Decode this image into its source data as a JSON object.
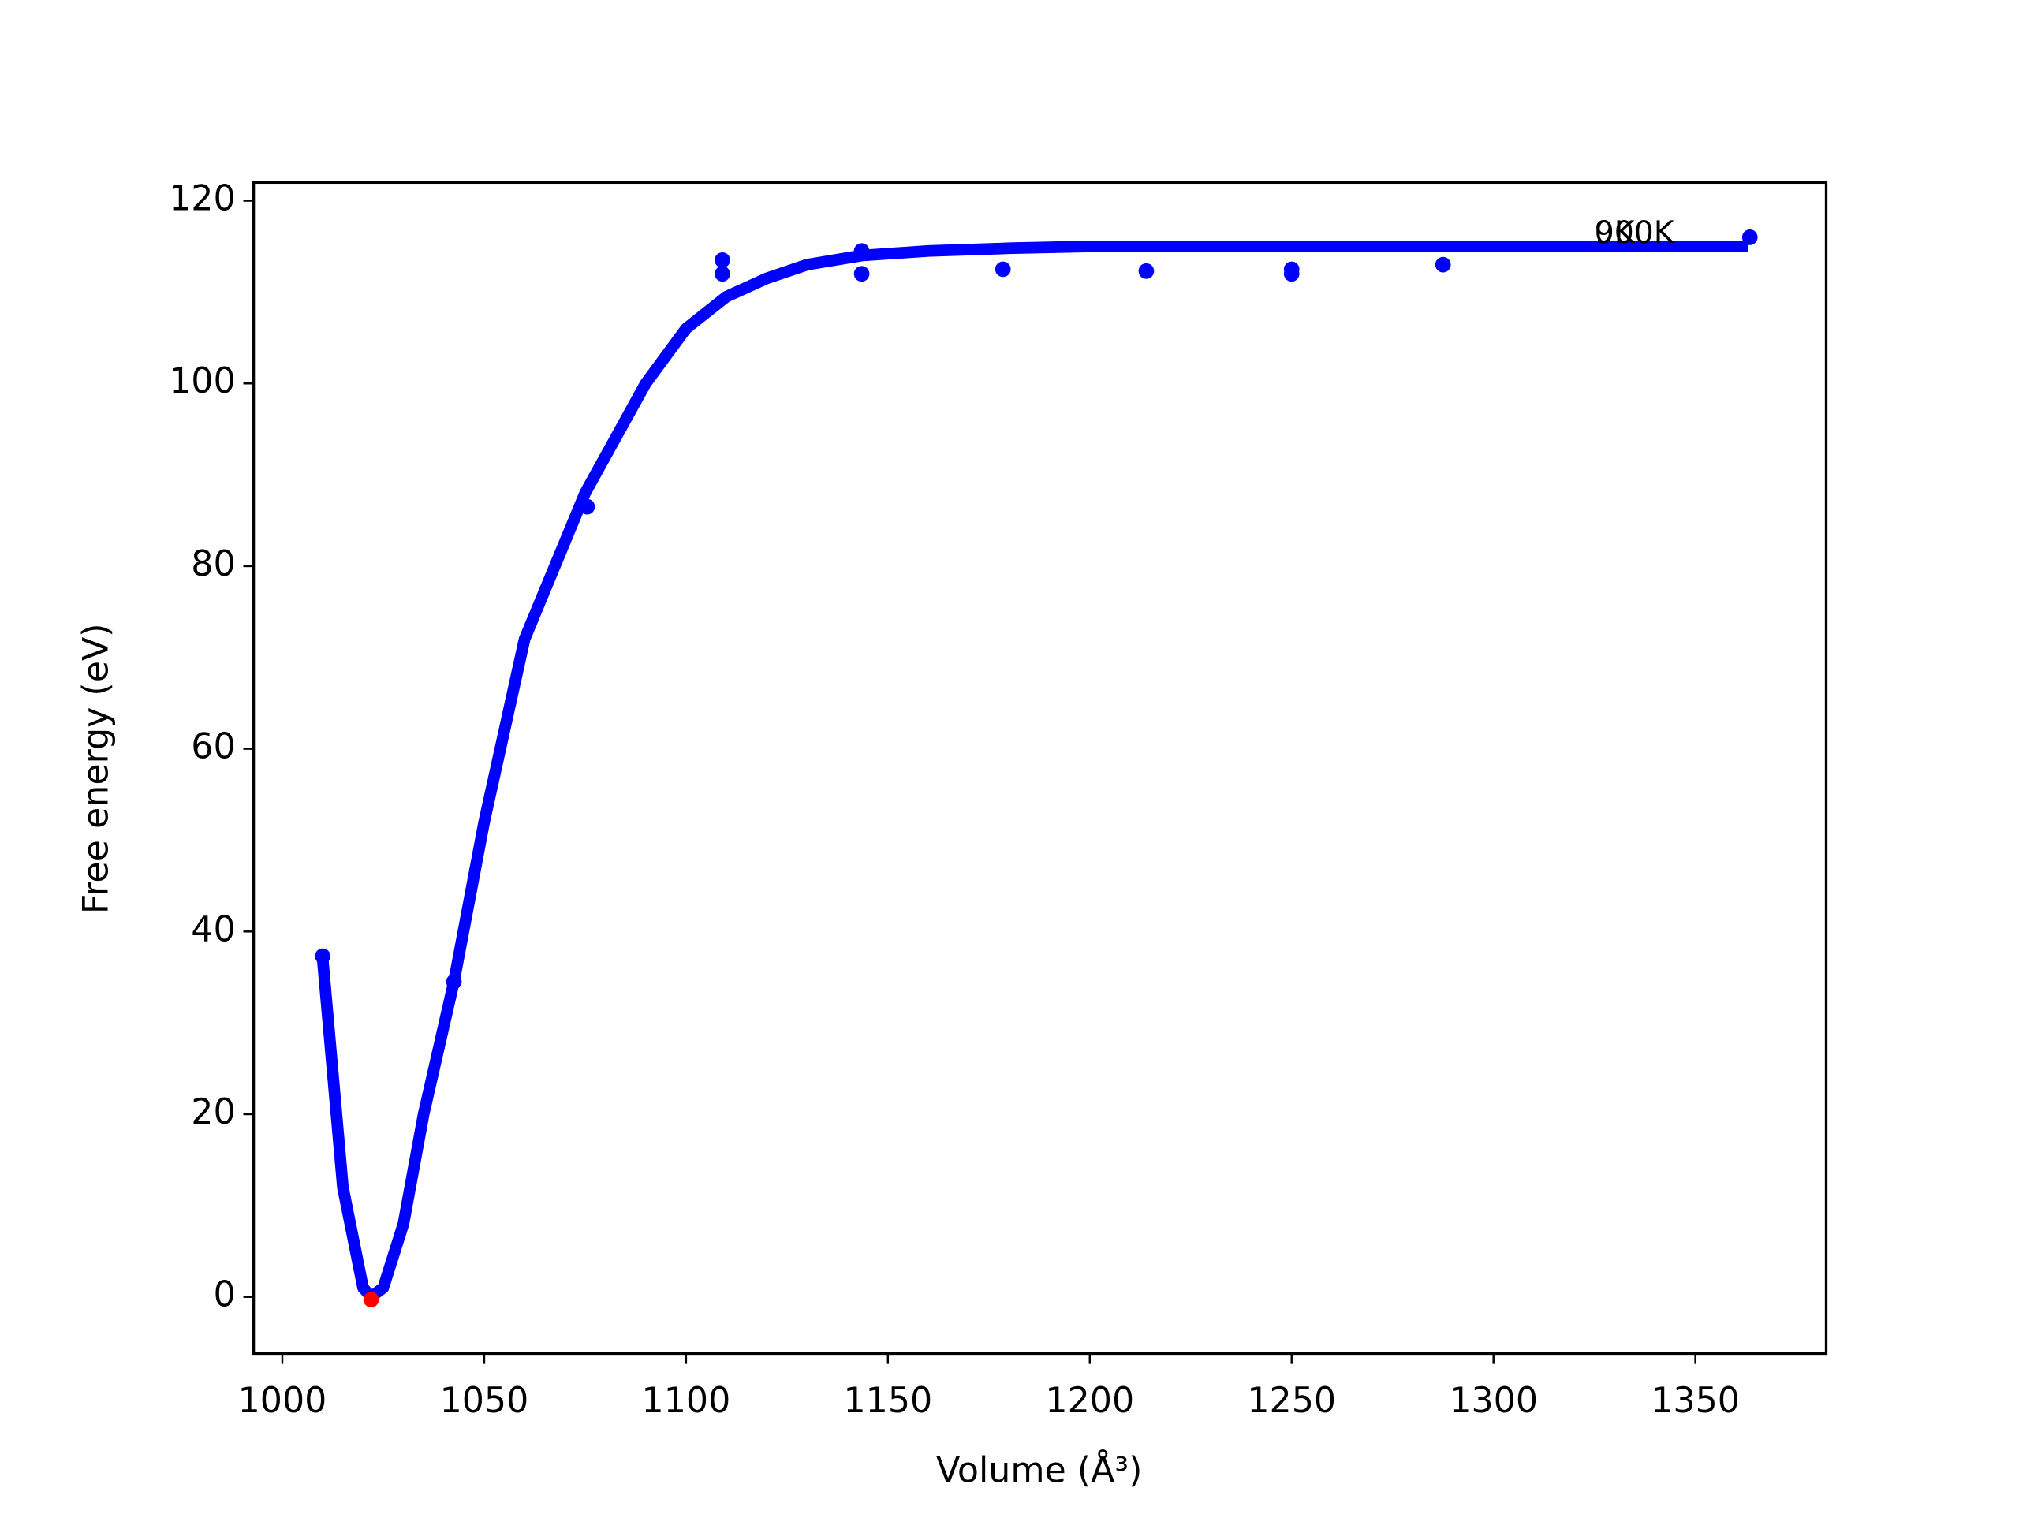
{
  "chart_data": {
    "type": "line",
    "xlabel": "Volume (Å³)",
    "ylabel": "Free energy (eV)",
    "xlim": [
      992.9,
      1382.4
    ],
    "ylim": [
      -6.2,
      122
    ],
    "xticks": [
      1000,
      1050,
      1100,
      1150,
      1200,
      1250,
      1300,
      1350
    ],
    "yticks": [
      0,
      20,
      40,
      60,
      80,
      100,
      120
    ],
    "series": [
      {
        "color": "#0000ff",
        "marker": false,
        "linewidth": 9,
        "x": [
          1010,
          1015,
          1020,
          1022,
          1025,
          1030,
          1035,
          1042.5,
          1050,
          1060,
          1075,
          1090,
          1100,
          1110,
          1120,
          1130,
          1143.5,
          1160,
          1180,
          1200,
          1250,
          1300,
          1363
        ],
        "values": [
          37,
          12,
          1,
          0,
          1,
          8,
          20,
          34.5,
          52,
          72,
          88,
          100,
          106,
          109.5,
          111.5,
          113,
          114,
          114.5,
          114.8,
          115,
          115,
          115,
          115
        ]
      },
      {
        "color": "#0000ff",
        "marker": true,
        "linewidth": 0,
        "x": [
          1010,
          1042.5,
          1075.5,
          1109,
          1109,
          1143.5,
          1143.5,
          1178.5,
          1214,
          1250,
          1250,
          1287.5,
          1363.5
        ],
        "values": [
          37.3,
          34.5,
          86.5,
          113.5,
          112,
          114.5,
          112,
          112.5,
          112.3,
          112.5,
          112,
          113,
          116
        ]
      },
      {
        "color": "#ff0000",
        "marker": true,
        "linewidth": 0,
        "x": [
          1022
        ],
        "values": [
          -0.3
        ]
      }
    ],
    "annotations": [
      {
        "text": "0K",
        "x": 1325,
        "y": 116.3
      },
      {
        "text": "900K",
        "x": 1325,
        "y": 116.3
      }
    ]
  }
}
